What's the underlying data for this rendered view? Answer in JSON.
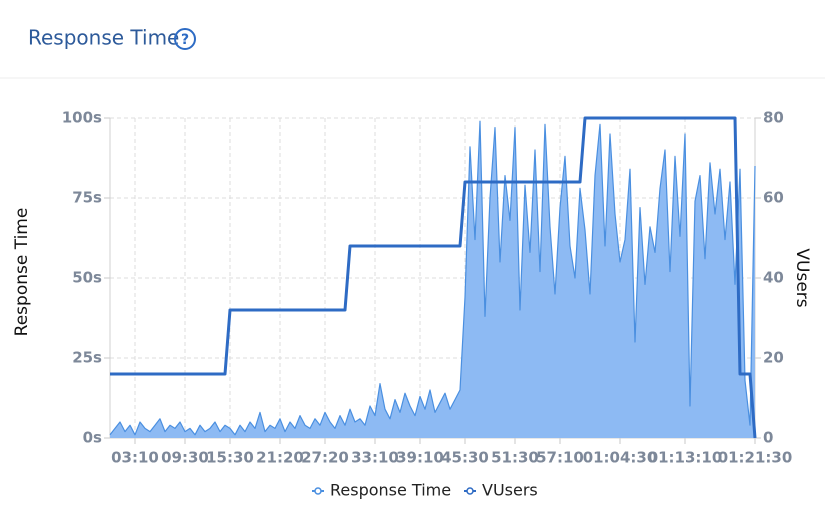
{
  "chart_data": {
    "type": "line",
    "title": "Response Time",
    "help": "?",
    "ylabel": "Response Time",
    "y2label": "VUsers",
    "categories": [
      null,
      null,
      null,
      null,
      null,
      "03:10",
      null,
      null,
      null,
      null,
      null,
      null,
      null,
      null,
      null,
      "09:30",
      null,
      null,
      null,
      null,
      null,
      null,
      null,
      null,
      "15:30",
      null,
      null,
      null,
      null,
      null,
      null,
      null,
      null,
      null,
      "21:20",
      null,
      null,
      null,
      null,
      null,
      null,
      null,
      null,
      "27:20",
      null,
      null,
      null,
      null,
      null,
      null,
      null,
      null,
      null,
      "33:10",
      null,
      null,
      null,
      null,
      null,
      null,
      null,
      null,
      "39:10",
      null,
      null,
      null,
      null,
      null,
      null,
      null,
      null,
      "45:30",
      null,
      null,
      null,
      null,
      null,
      null,
      null,
      null,
      null,
      "51:30",
      null,
      null,
      null,
      null,
      null,
      null,
      null,
      null,
      "57:10",
      null,
      null,
      null,
      null,
      null,
      null,
      null,
      null,
      null,
      null,
      null,
      "01:04:30",
      null,
      null,
      null,
      null,
      null,
      null,
      null,
      null,
      null,
      null,
      null,
      null,
      "01:13:10",
      null,
      null,
      null,
      null,
      null,
      null,
      null,
      null,
      null,
      null,
      null,
      null,
      null,
      "01:21:30"
    ],
    "series": [
      {
        "name": "Response Time",
        "color": "#4a8fe0",
        "fill": "#8dbaf3",
        "values": [
          1,
          3,
          5,
          2,
          4,
          1,
          5,
          3,
          2,
          4,
          6,
          2,
          4,
          3,
          5,
          2,
          3,
          1,
          4,
          2,
          3,
          5,
          2,
          4,
          3,
          1,
          4,
          2,
          5,
          3,
          8,
          2,
          4,
          3,
          6,
          2,
          5,
          3,
          7,
          4,
          3,
          6,
          4,
          8,
          5,
          3,
          7,
          4,
          9,
          5,
          6,
          4,
          10,
          7,
          17,
          9,
          6,
          12,
          8,
          14,
          10,
          7,
          13,
          9,
          15,
          8,
          11,
          14,
          9,
          12,
          15,
          44,
          91,
          62,
          99,
          38,
          75,
          97,
          55,
          82,
          68,
          97,
          40,
          79,
          58,
          90,
          52,
          98,
          66,
          45,
          72,
          88,
          60,
          50,
          78,
          65,
          45,
          82,
          98,
          60,
          95,
          70,
          55,
          62,
          84,
          30,
          72,
          48,
          66,
          58,
          78,
          90,
          52,
          88,
          63,
          95,
          10,
          74,
          82,
          56,
          86,
          70,
          84,
          62,
          80,
          48,
          84,
          18,
          4,
          85
        ]
      },
      {
        "name": "VUsers",
        "color": "#2e6bc4",
        "axis": "y2",
        "values": [
          16,
          16,
          16,
          16,
          16,
          16,
          16,
          16,
          16,
          16,
          16,
          16,
          16,
          16,
          16,
          16,
          16,
          16,
          16,
          16,
          16,
          16,
          16,
          16,
          32,
          32,
          32,
          32,
          32,
          32,
          32,
          32,
          32,
          32,
          32,
          32,
          32,
          32,
          32,
          32,
          32,
          32,
          32,
          32,
          32,
          32,
          32,
          32,
          48,
          48,
          48,
          48,
          48,
          48,
          48,
          48,
          48,
          48,
          48,
          48,
          48,
          48,
          48,
          48,
          48,
          48,
          48,
          48,
          48,
          48,
          48,
          64,
          64,
          64,
          64,
          64,
          64,
          64,
          64,
          64,
          64,
          64,
          64,
          64,
          64,
          64,
          64,
          64,
          64,
          64,
          64,
          64,
          64,
          64,
          64,
          80,
          80,
          80,
          80,
          80,
          80,
          80,
          80,
          80,
          80,
          80,
          80,
          80,
          80,
          80,
          80,
          80,
          80,
          80,
          80,
          80,
          80,
          80,
          80,
          80,
          80,
          80,
          80,
          80,
          80,
          80,
          16,
          16,
          16,
          0
        ]
      }
    ],
    "ylim": [
      0,
      100
    ],
    "yticks": [
      {
        "value": 0,
        "label": "0s"
      },
      {
        "value": 25,
        "label": "25s"
      },
      {
        "value": 50,
        "label": "50s"
      },
      {
        "value": 75,
        "label": "75s"
      },
      {
        "value": 100,
        "label": "100s"
      }
    ],
    "y2lim": [
      0,
      80
    ],
    "y2ticks": [
      0,
      20,
      40,
      60,
      80
    ],
    "grid": true
  }
}
